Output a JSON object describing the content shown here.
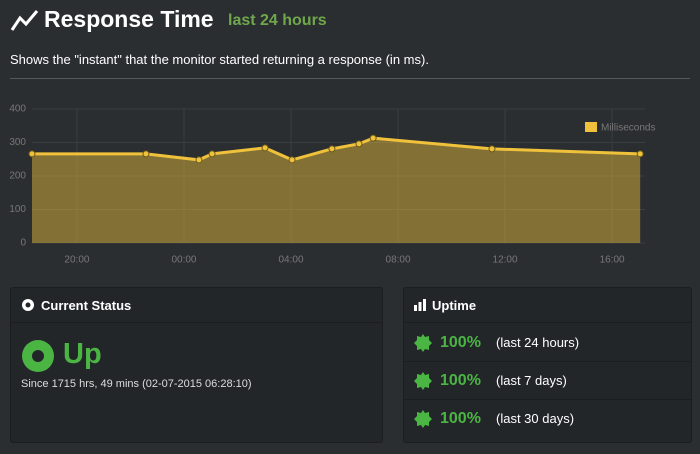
{
  "header": {
    "title": "Response Time",
    "period": "last 24 hours",
    "description": "Shows the \"instant\" that the monitor started returning a response (in ms)."
  },
  "chart_data": {
    "type": "area",
    "x": [
      18.32,
      22.58,
      24.56,
      25.05,
      27.03,
      28.04,
      29.53,
      30.54,
      31.07,
      35.51,
      41.05
    ],
    "series": [
      {
        "name": "Milliseconds",
        "color": "#f0c23b",
        "values": [
          266,
          266,
          248,
          266,
          284,
          248,
          281,
          296,
          313,
          281,
          266
        ]
      }
    ],
    "xlim": [
      18.32,
      41.23
    ],
    "xticks": [
      {
        "value": 20,
        "label": "20:00"
      },
      {
        "value": 24,
        "label": "00:00"
      },
      {
        "value": 28,
        "label": "04:00"
      },
      {
        "value": 32,
        "label": "08:00"
      },
      {
        "value": 36,
        "label": "12:00"
      },
      {
        "value": 40,
        "label": "16:00"
      }
    ],
    "ylim": [
      0,
      400
    ],
    "yticks": [
      0,
      100,
      200,
      300,
      400
    ],
    "grid": true,
    "legend": "top-right"
  },
  "status": {
    "title": "Current Status",
    "state": "Up",
    "since": "Since 1715 hrs, 49 mins (02-07-2015 06:28:10)"
  },
  "uptime": {
    "title": "Uptime",
    "rows": [
      {
        "value": "100%",
        "period": "(last 24 hours)"
      },
      {
        "value": "100%",
        "period": "(last 7 days)"
      },
      {
        "value": "100%",
        "period": "(last 30 days)"
      }
    ]
  }
}
